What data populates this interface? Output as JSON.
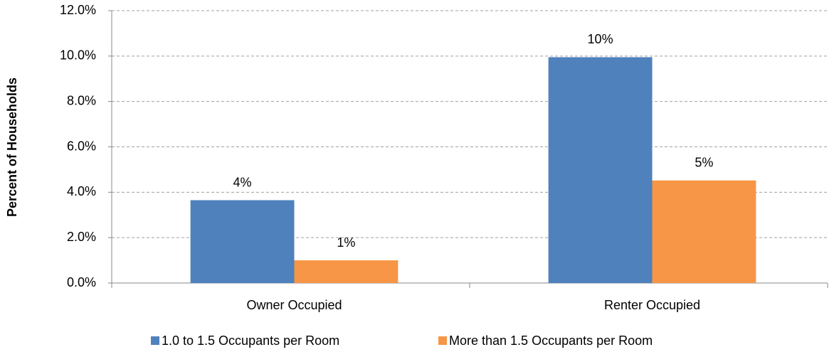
{
  "chart_data": {
    "type": "bar",
    "y_label": "Percent of Households",
    "categories": [
      "Owner Occupied",
      "Renter Occupied"
    ],
    "series": [
      {
        "name": "1.0 to 1.5 Occupants per Room",
        "color": "#4f81bd",
        "values": [
          3.65,
          9.95
        ],
        "value_labels": [
          "4%",
          "10%"
        ]
      },
      {
        "name": "More than 1.5 Occupants per Room",
        "color": "#f79646",
        "values": [
          1.0,
          4.52
        ],
        "value_labels": [
          "1%",
          "5%"
        ]
      }
    ],
    "ylim": [
      0,
      12
    ],
    "yticks": [
      {
        "value": 0,
        "label": "0.0%"
      },
      {
        "value": 2,
        "label": "2.0%"
      },
      {
        "value": 4,
        "label": "4.0%"
      },
      {
        "value": 6,
        "label": "6.0%"
      },
      {
        "value": 8,
        "label": "8.0%"
      },
      {
        "value": 10,
        "label": "10.0%"
      },
      {
        "value": 12,
        "label": "12.0%"
      }
    ],
    "grid": true,
    "legend": "bottom"
  }
}
